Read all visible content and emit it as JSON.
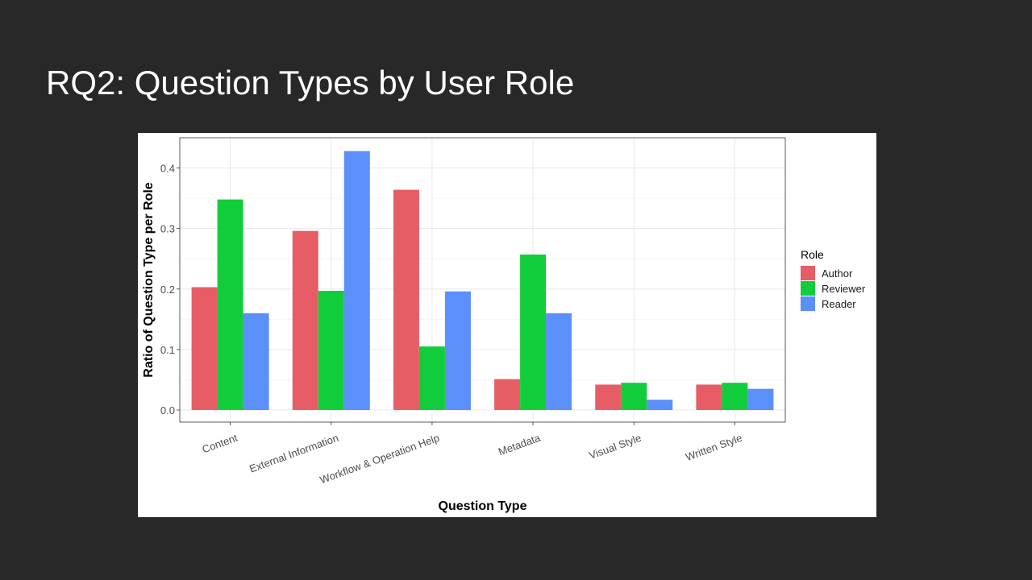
{
  "slide": {
    "title": "RQ2: Question Types by User Role"
  },
  "chart_data": {
    "type": "bar",
    "xlabel": "Question Type",
    "ylabel": "Ratio of Question Type per Role",
    "categories": [
      "Content",
      "External Information",
      "Workflow & Operation Help",
      "Metadata",
      "Visual Style",
      "Written Style"
    ],
    "series": [
      {
        "name": "Author",
        "color": "#e75d65",
        "values": [
          0.203,
          0.296,
          0.364,
          0.051,
          0.042,
          0.042
        ]
      },
      {
        "name": "Reviewer",
        "color": "#11cd3c",
        "values": [
          0.348,
          0.197,
          0.105,
          0.257,
          0.045,
          0.045
        ]
      },
      {
        "name": "Reader",
        "color": "#5b8ff9",
        "values": [
          0.16,
          0.428,
          0.196,
          0.16,
          0.017,
          0.035
        ]
      }
    ],
    "ylim": [
      -0.02,
      0.45
    ],
    "yticks": [
      0.0,
      0.1,
      0.2,
      0.3,
      0.4
    ],
    "ytick_labels": [
      "0.0",
      "0.1",
      "0.2",
      "0.3",
      "0.4"
    ],
    "grid": true,
    "legend": {
      "title": "Role",
      "position": "right"
    }
  }
}
